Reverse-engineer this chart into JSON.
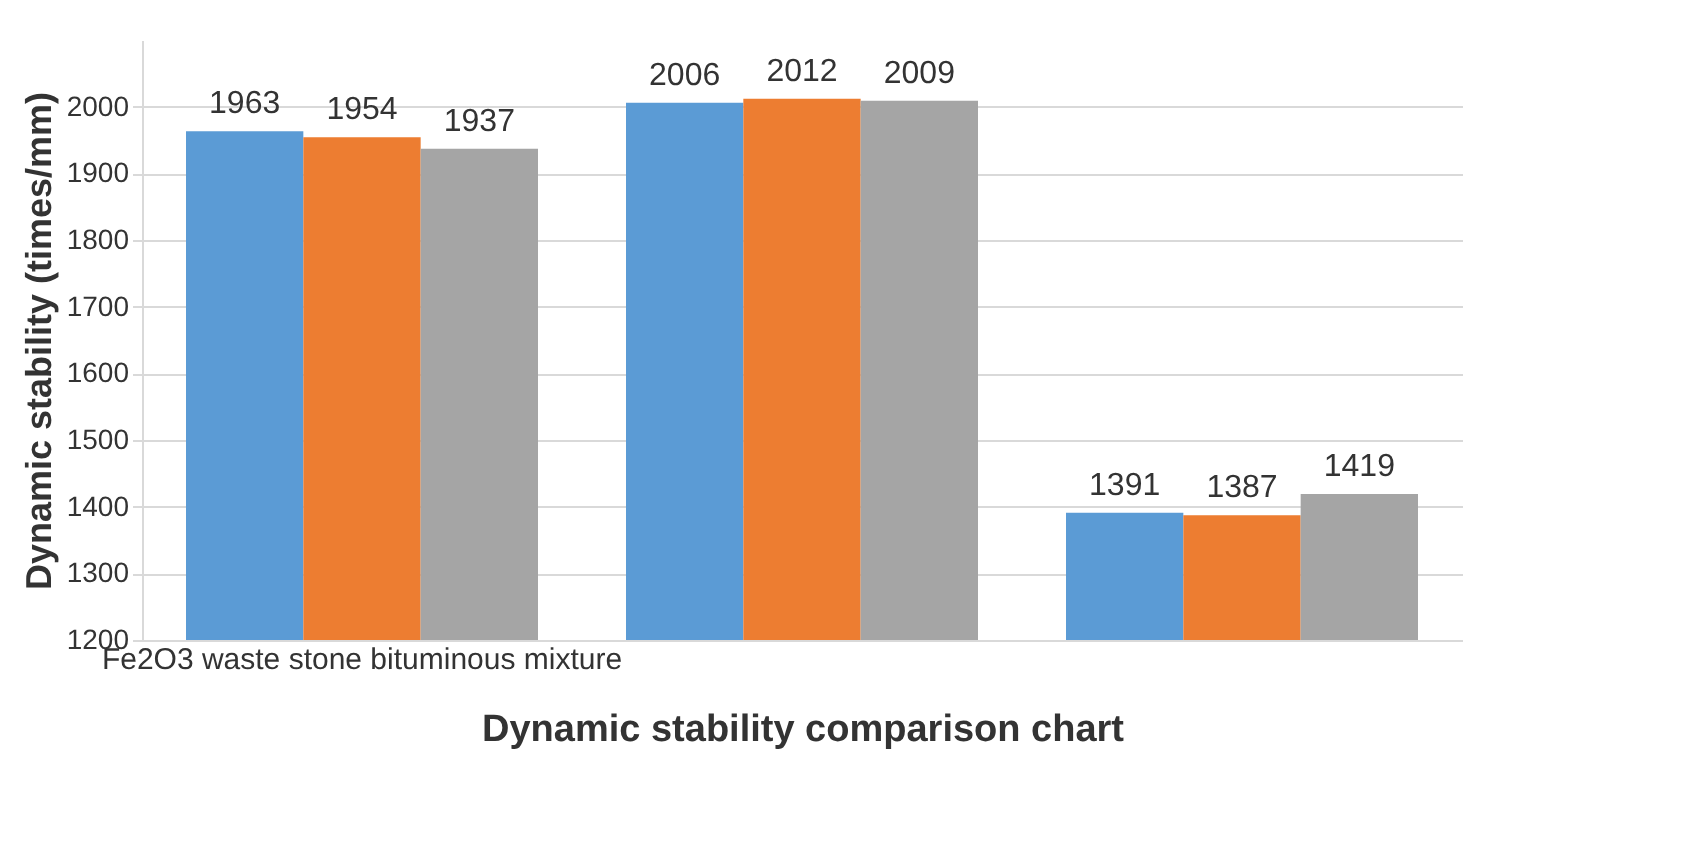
{
  "chart_data": {
    "type": "bar",
    "xlabel": "Dynamic stability comparison chart",
    "ylabel": "Dynamic stability (times/mm)",
    "categories": [
      "Fe2O3  waste stone bituminous mixture",
      null,
      null
    ],
    "series": [
      {
        "color": "#5b9bd5",
        "values": [
          1963,
          2006,
          1391
        ]
      },
      {
        "color": "#ed7d31",
        "values": [
          1954,
          2012,
          1387
        ]
      },
      {
        "color": "#a5a5a5",
        "values": [
          1937,
          2009,
          1419
        ]
      }
    ],
    "ylim": [
      1200,
      2100
    ],
    "yticks": [
      1200,
      1300,
      1400,
      1500,
      1600,
      1700,
      1800,
      1900,
      2000
    ],
    "grid": "y",
    "legend": false,
    "data_labels": true
  }
}
